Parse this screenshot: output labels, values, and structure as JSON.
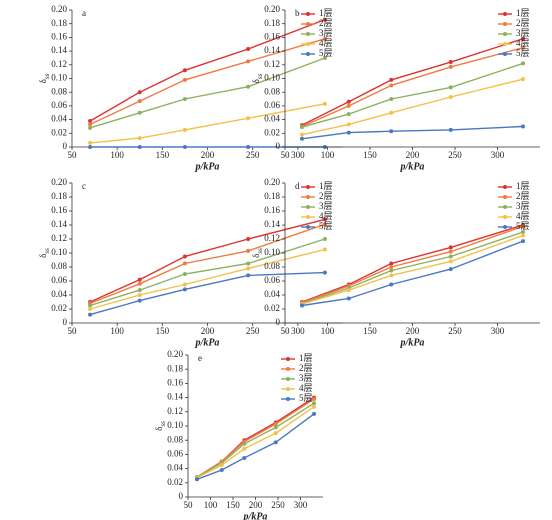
{
  "chart_data": [
    {
      "type": "line",
      "title": "a",
      "x_label": "p/kPa",
      "y_label": "δ",
      "y_label_sub": "ss",
      "x": [
        70,
        125,
        175,
        245,
        330
      ],
      "xlim": [
        50,
        350
      ],
      "xticks": [
        50,
        100,
        150,
        200,
        250,
        300
      ],
      "ylim": [
        0,
        0.2
      ],
      "yticks": [
        0,
        0.02,
        0.04,
        0.06,
        0.08,
        {
          "value": 0.1,
          "label": "0.10"
        },
        0.12,
        0.14,
        0.16,
        0.18,
        {
          "value": 0.2,
          "label": "0.20"
        }
      ],
      "legend": "upper right",
      "series": [
        {
          "name": "1层",
          "color": "#e03030",
          "values": [
            0.038,
            0.08,
            0.112,
            0.143,
            0.186
          ]
        },
        {
          "name": "2层",
          "color": "#f07a40",
          "values": [
            0.033,
            0.067,
            0.098,
            0.125,
            0.158
          ]
        },
        {
          "name": "3层",
          "color": "#8db060",
          "values": [
            0.028,
            0.05,
            0.07,
            0.088,
            0.13
          ]
        },
        {
          "name": "4层",
          "color": "#f5c04a",
          "values": [
            0.006,
            0.013,
            0.025,
            0.042,
            0.063
          ]
        },
        {
          "name": "5层",
          "color": "#4a78c0",
          "values": [
            0,
            0,
            0,
            0,
            0
          ]
        }
      ]
    },
    {
      "type": "line",
      "title": "b",
      "x_label": "p/kPa",
      "y_label": "δ",
      "y_label_sub": "ss",
      "x": [
        70,
        125,
        175,
        245,
        330
      ],
      "xlim": [
        50,
        350
      ],
      "xticks": [
        50,
        100,
        150,
        200,
        250,
        300
      ],
      "ylim": [
        0,
        0.2
      ],
      "yticks": [
        0,
        0.02,
        0.04,
        0.06,
        0.08,
        {
          "value": 0.1,
          "label": "0.10"
        },
        0.12,
        0.14,
        0.16,
        0.18,
        {
          "value": 0.2,
          "label": "0.20"
        }
      ],
      "legend": "upper right",
      "series": [
        {
          "name": "1层",
          "color": "#e03030",
          "values": [
            0.032,
            0.066,
            0.098,
            0.124,
            0.158
          ]
        },
        {
          "name": "2层",
          "color": "#f07a40",
          "values": [
            0.03,
            0.06,
            0.09,
            0.117,
            0.145
          ]
        },
        {
          "name": "3层",
          "color": "#8db060",
          "values": [
            0.029,
            0.048,
            0.07,
            0.087,
            0.122
          ]
        },
        {
          "name": "4层",
          "color": "#f5c04a",
          "values": [
            0.018,
            0.033,
            0.05,
            0.073,
            0.099
          ]
        },
        {
          "name": "5层",
          "color": "#4a78c0",
          "values": [
            0.012,
            0.021,
            0.023,
            0.025,
            0.03
          ]
        }
      ]
    },
    {
      "type": "line",
      "title": "c",
      "x_label": "p/kPa",
      "y_label": "δ",
      "y_label_sub": "ss",
      "x": [
        70,
        125,
        175,
        245,
        330
      ],
      "xlim": [
        50,
        350
      ],
      "xticks": [
        50,
        100,
        150,
        200,
        250,
        300
      ],
      "ylim": [
        0,
        0.2
      ],
      "yticks": [
        0,
        0.02,
        0.04,
        0.06,
        0.08,
        {
          "value": 0.1,
          "label": "0.10"
        },
        0.12,
        0.14,
        0.16,
        0.18,
        {
          "value": 0.2,
          "label": "0.20"
        }
      ],
      "legend": "upper right",
      "series": [
        {
          "name": "1层",
          "color": "#e03030",
          "values": [
            0.03,
            0.062,
            0.095,
            0.12,
            0.148
          ]
        },
        {
          "name": "2层",
          "color": "#f07a40",
          "values": [
            0.028,
            0.056,
            0.085,
            0.103,
            0.141
          ]
        },
        {
          "name": "3层",
          "color": "#8db060",
          "values": [
            0.025,
            0.047,
            0.07,
            0.085,
            0.12
          ]
        },
        {
          "name": "4层",
          "color": "#f5c04a",
          "values": [
            0.02,
            0.04,
            0.055,
            0.078,
            0.105
          ]
        },
        {
          "name": "5层",
          "color": "#4a78c0",
          "values": [
            0.012,
            0.032,
            0.048,
            0.068,
            0.072
          ]
        }
      ]
    },
    {
      "type": "line",
      "title": "d",
      "x_label": "p/kPa",
      "y_label": "δ",
      "y_label_sub": "ss",
      "x": [
        70,
        125,
        175,
        245,
        330
      ],
      "xlim": [
        50,
        350
      ],
      "xticks": [
        50,
        100,
        150,
        200,
        250,
        300
      ],
      "ylim": [
        0,
        0.2
      ],
      "yticks": [
        0,
        0.02,
        0.04,
        0.06,
        0.08,
        {
          "value": 0.1,
          "label": "0.10"
        },
        0.12,
        0.14,
        0.16,
        0.18,
        {
          "value": 0.2,
          "label": "0.20"
        }
      ],
      "legend": "upper right",
      "series": [
        {
          "name": "1层",
          "color": "#e03030",
          "values": [
            0.03,
            0.055,
            0.085,
            0.108,
            0.14
          ]
        },
        {
          "name": "2层",
          "color": "#f07a40",
          "values": [
            0.029,
            0.053,
            0.08,
            0.102,
            0.138
          ]
        },
        {
          "name": "3层",
          "color": "#8db060",
          "values": [
            0.028,
            0.05,
            0.075,
            0.095,
            0.13
          ]
        },
        {
          "name": "4层",
          "color": "#f5c04a",
          "values": [
            0.027,
            0.047,
            0.068,
            0.088,
            0.125
          ]
        },
        {
          "name": "5层",
          "color": "#4a78c0",
          "values": [
            0.025,
            0.035,
            0.055,
            0.077,
            0.117
          ]
        }
      ]
    },
    {
      "type": "line",
      "title": "e",
      "x_label": "p/kPa",
      "y_label": "δ",
      "y_label_sub": "ss",
      "x": [
        70,
        125,
        175,
        245,
        330
      ],
      "xlim": [
        50,
        350
      ],
      "xticks": [
        50,
        100,
        150,
        200,
        250,
        300
      ],
      "ylim": [
        0,
        0.2
      ],
      "yticks": [
        0,
        0.02,
        0.04,
        0.06,
        0.08,
        {
          "value": 0.1,
          "label": "0.10"
        },
        0.12,
        0.14,
        0.16,
        0.18,
        {
          "value": 0.2,
          "label": "0.20"
        }
      ],
      "legend": "upper right",
      "series": [
        {
          "name": "1层",
          "color": "#e03030",
          "values": [
            0.028,
            0.05,
            0.08,
            0.105,
            0.14
          ]
        },
        {
          "name": "2层",
          "color": "#f07a40",
          "values": [
            0.028,
            0.05,
            0.078,
            0.103,
            0.138
          ]
        },
        {
          "name": "3层",
          "color": "#8db060",
          "values": [
            0.028,
            0.048,
            0.075,
            0.098,
            0.132
          ]
        },
        {
          "name": "4层",
          "color": "#f5c04a",
          "values": [
            0.027,
            0.045,
            0.068,
            0.09,
            0.127
          ]
        },
        {
          "name": "5层",
          "color": "#4a78c0",
          "values": [
            0.025,
            0.038,
            0.055,
            0.077,
            0.117
          ]
        }
      ]
    }
  ]
}
